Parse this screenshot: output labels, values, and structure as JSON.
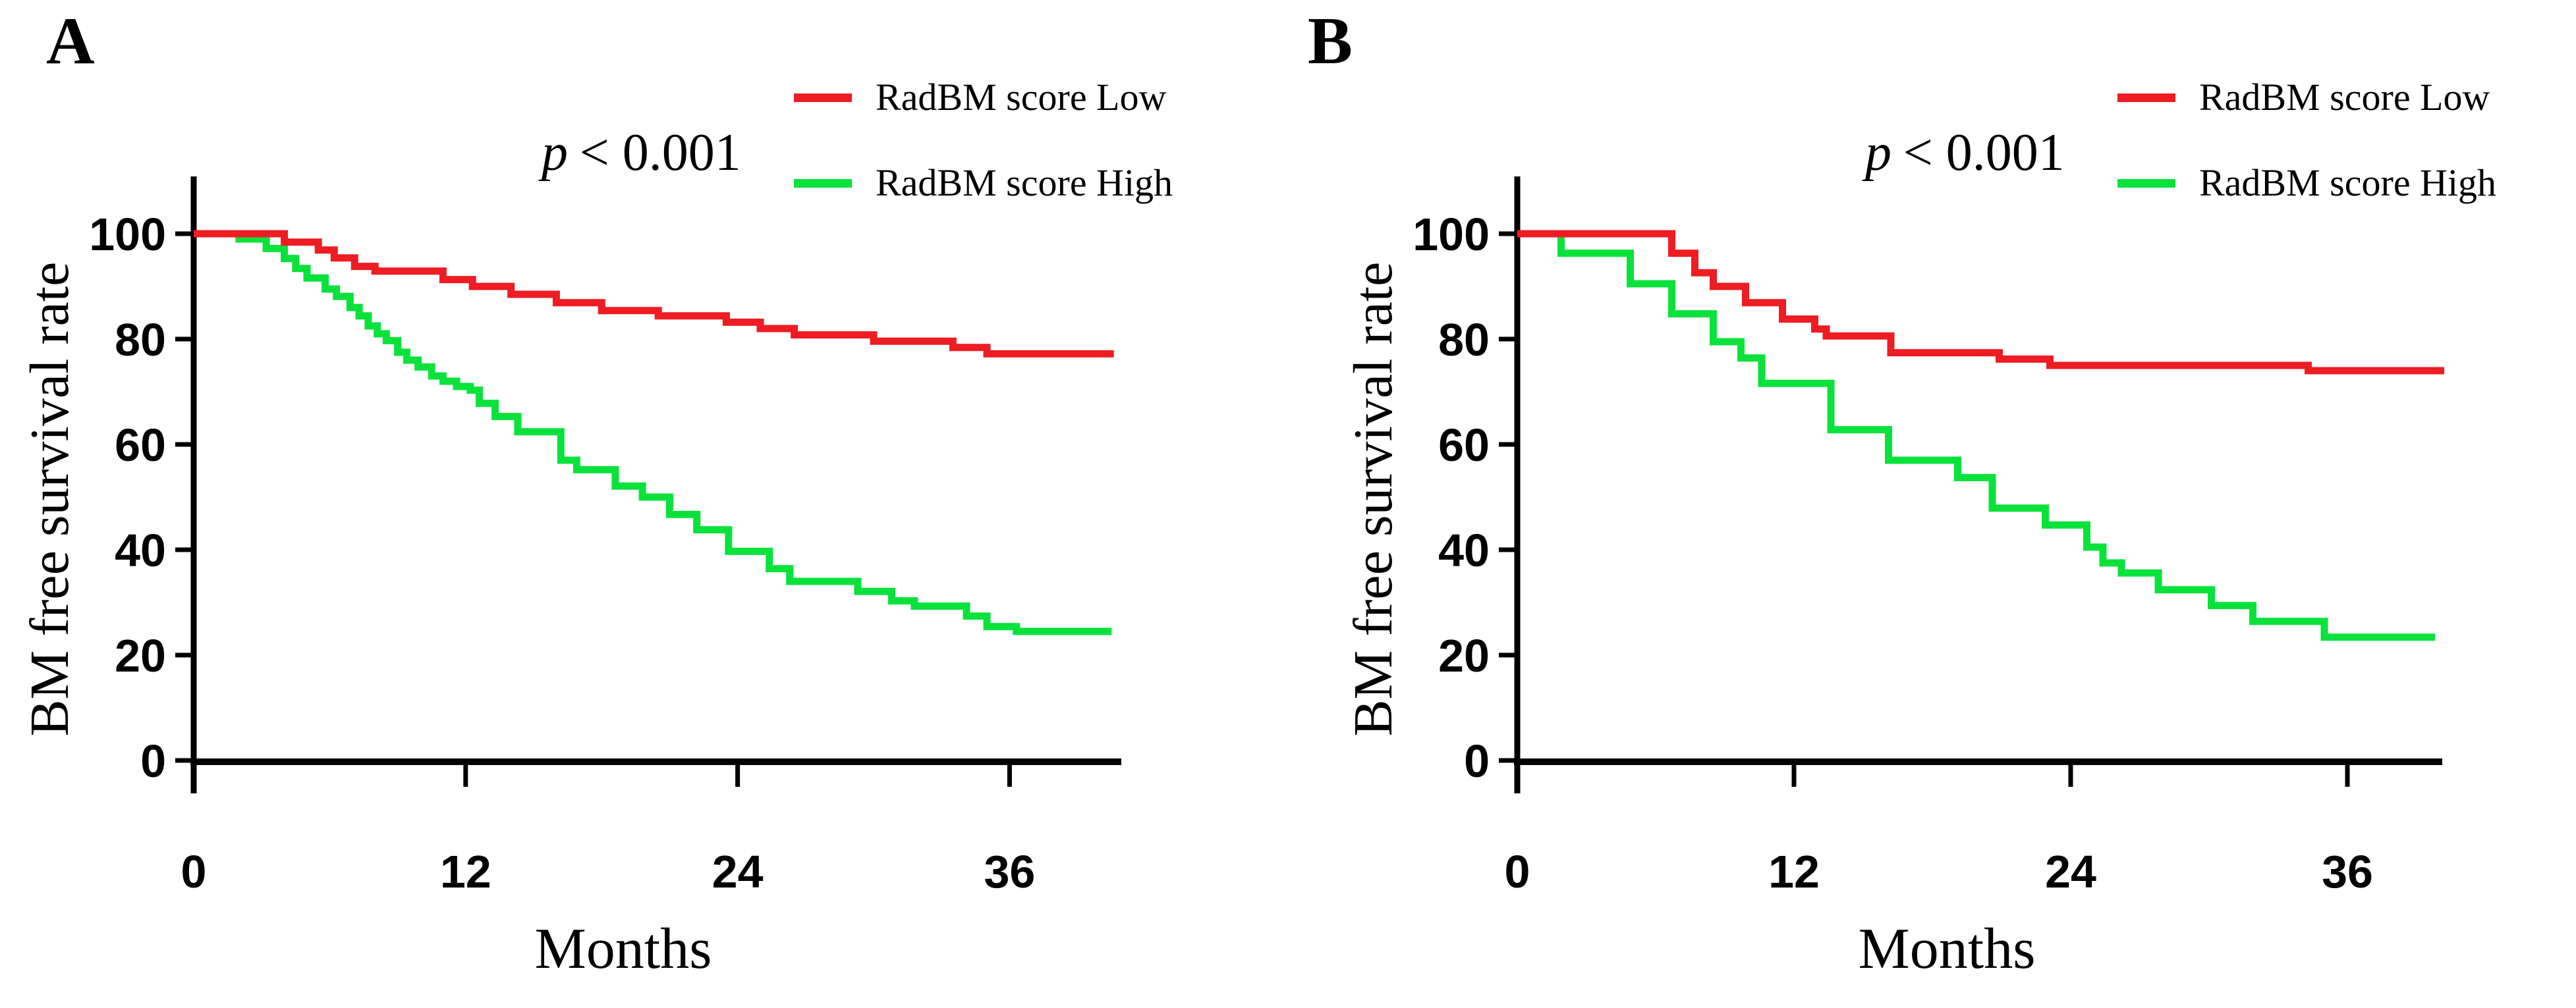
{
  "ui": {
    "p_prefix": "p",
    "p_rest": "< 0.001",
    "panel_a": {
      "label": "A"
    },
    "panel_b": {
      "label": "B"
    }
  },
  "chart_data": [
    {
      "type": "line",
      "subtype": "kaplan-meier-step",
      "panel": "A",
      "title": "",
      "xlabel": "Months",
      "ylabel": "BM free survival rate",
      "annotation": "p < 0.001",
      "xlim": [
        0,
        40.6
      ],
      "ylim": [
        0,
        100
      ],
      "xticks": [
        0,
        12,
        24,
        36
      ],
      "yticks": [
        0,
        20,
        40,
        60,
        80,
        100
      ],
      "grid": false,
      "legend_position": "top-right",
      "series": [
        {
          "name": "RadBM score Low",
          "color": "#ee1c23",
          "end": 40.6,
          "steps": [
            [
              0,
              100
            ],
            [
              4,
              98.4
            ],
            [
              5.5,
              96.9
            ],
            [
              6.2,
              95.4
            ],
            [
              7.1,
              93.8
            ],
            [
              8,
              92.9
            ],
            [
              11,
              91.3
            ],
            [
              12.3,
              90
            ],
            [
              14,
              88.5
            ],
            [
              16,
              86.9
            ],
            [
              18,
              85.4
            ],
            [
              20.5,
              84.4
            ],
            [
              23.5,
              83.2
            ],
            [
              25,
              82
            ],
            [
              26.5,
              80.8
            ],
            [
              30,
              79.6
            ],
            [
              33.5,
              78.4
            ],
            [
              35,
              77.2
            ]
          ]
        },
        {
          "name": "RadBM score High",
          "color": "#0ae23c",
          "end": 40.5,
          "steps": [
            [
              0,
              100
            ],
            [
              2,
              99
            ],
            [
              3.2,
              97.2
            ],
            [
              4,
              95.3
            ],
            [
              4.5,
              93.4
            ],
            [
              5,
              91.6
            ],
            [
              5.8,
              89.5
            ],
            [
              6.3,
              88.1
            ],
            [
              6.9,
              86
            ],
            [
              7.3,
              84.4
            ],
            [
              7.7,
              82.5
            ],
            [
              8.1,
              81
            ],
            [
              8.5,
              79.7
            ],
            [
              9,
              77.5
            ],
            [
              9.4,
              76
            ],
            [
              9.9,
              74.7
            ],
            [
              10.5,
              73
            ],
            [
              11,
              72
            ],
            [
              11.6,
              71
            ],
            [
              12.2,
              70.3
            ],
            [
              12.6,
              67.8
            ],
            [
              13.3,
              65.3
            ],
            [
              14.3,
              62.4
            ],
            [
              16.2,
              57
            ],
            [
              16.9,
              55.2
            ],
            [
              18.6,
              52.1
            ],
            [
              19.8,
              50
            ],
            [
              21,
              46.7
            ],
            [
              22.2,
              43.8
            ],
            [
              23.6,
              39.7
            ],
            [
              25.4,
              36.4
            ],
            [
              26.3,
              34
            ],
            [
              29.3,
              32.1
            ],
            [
              30.8,
              30.3
            ],
            [
              31.8,
              29.3
            ],
            [
              34.1,
              27.4
            ],
            [
              35,
              25.4
            ],
            [
              36.3,
              24.5
            ]
          ]
        }
      ]
    },
    {
      "type": "line",
      "subtype": "kaplan-meier-step",
      "panel": "B",
      "title": "",
      "xlabel": "Months",
      "ylabel": "BM free survival rate",
      "annotation": "p < 0.001",
      "xlim": [
        0,
        40.2
      ],
      "ylim": [
        0,
        100
      ],
      "xticks": [
        0,
        12,
        24,
        36
      ],
      "yticks": [
        0,
        20,
        40,
        60,
        80,
        100
      ],
      "grid": false,
      "legend_position": "top-right",
      "series": [
        {
          "name": "RadBM score Low",
          "color": "#ee1c23",
          "end": 40.2,
          "steps": [
            [
              0,
              100
            ],
            [
              6.7,
              96.3
            ],
            [
              7.7,
              92.6
            ],
            [
              8.5,
              90
            ],
            [
              9.9,
              86.9
            ],
            [
              11.5,
              83.8
            ],
            [
              12.9,
              81.9
            ],
            [
              13.4,
              80.6
            ],
            [
              16.2,
              77.4
            ],
            [
              20.9,
              76.2
            ],
            [
              23.1,
              75
            ],
            [
              34.3,
              74
            ]
          ]
        },
        {
          "name": "RadBM score High",
          "color": "#0ae23c",
          "end": 39.8,
          "steps": [
            [
              0,
              100
            ],
            [
              1.9,
              96.3
            ],
            [
              4.9,
              90.5
            ],
            [
              6.7,
              84.8
            ],
            [
              8.5,
              79.5
            ],
            [
              9.7,
              76.4
            ],
            [
              10.6,
              71.6
            ],
            [
              13.6,
              62.8
            ],
            [
              16.1,
              57
            ],
            [
              19.1,
              53.7
            ],
            [
              20.6,
              47.9
            ],
            [
              22.9,
              44.7
            ],
            [
              24.7,
              40.5
            ],
            [
              25.4,
              37.5
            ],
            [
              26.2,
              35.6
            ],
            [
              27.8,
              32.4
            ],
            [
              30.1,
              29.4
            ],
            [
              31.9,
              26.4
            ],
            [
              35,
              23.4
            ]
          ]
        }
      ]
    }
  ]
}
